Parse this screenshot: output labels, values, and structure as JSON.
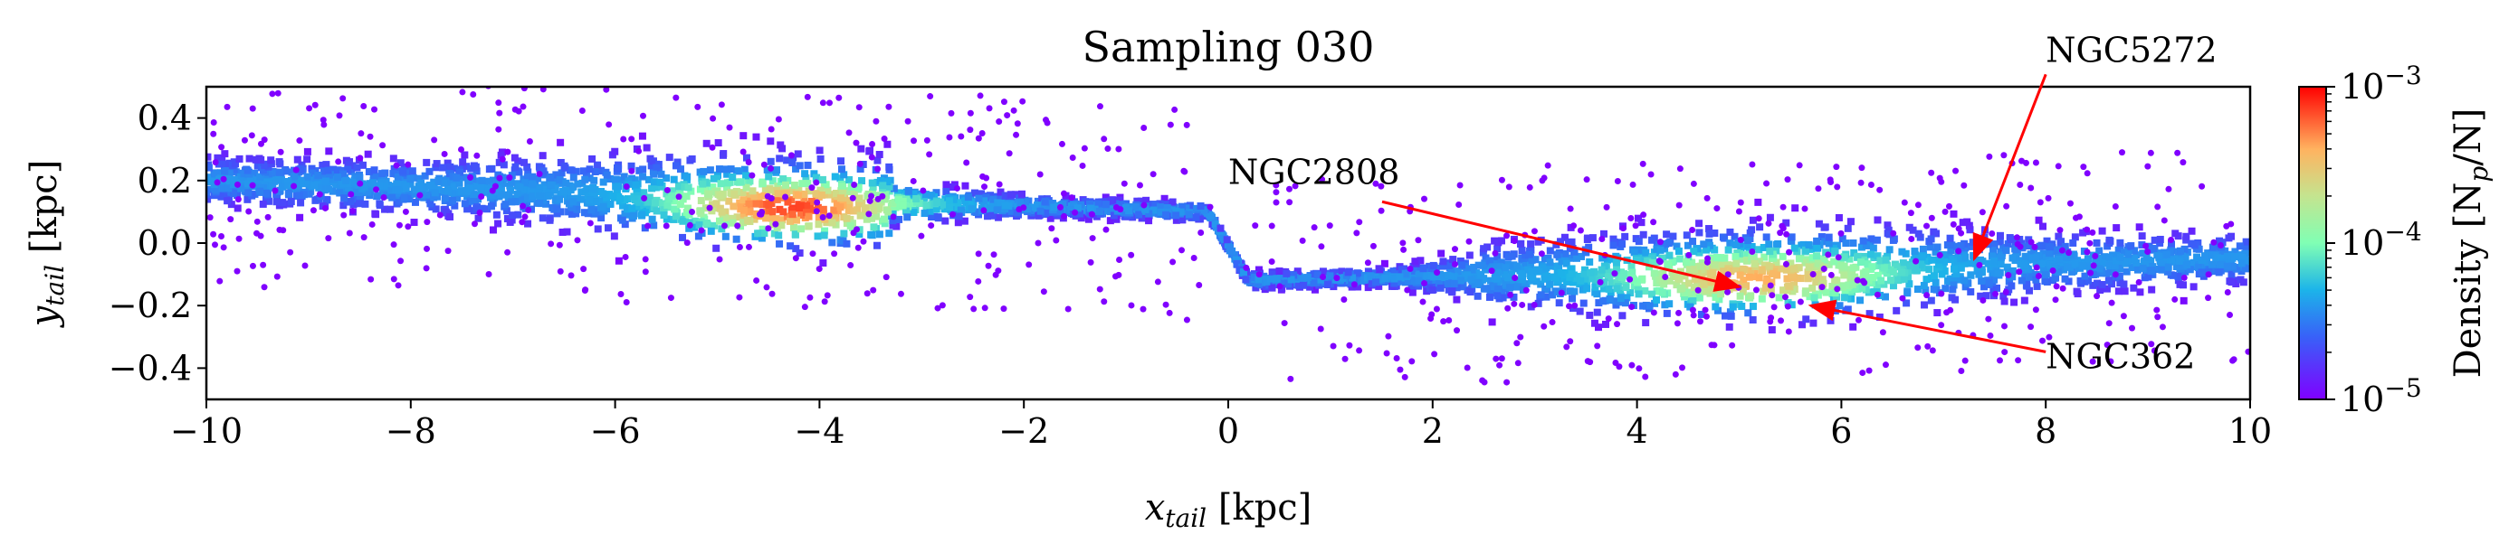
{
  "chart_data": {
    "type": "heatmap",
    "title": "Sampling 030",
    "xlabel": {
      "main": "x",
      "sub": "tail",
      "unit": "[kpc]"
    },
    "ylabel": {
      "main": "y",
      "sub": "tail",
      "unit": "[kpc]"
    },
    "xlim": [
      -10,
      10
    ],
    "ylim": [
      -0.5,
      0.5
    ],
    "xticks": [
      -10,
      -8,
      -6,
      -4,
      -2,
      0,
      2,
      4,
      6,
      8,
      10
    ],
    "xtick_labels": [
      "−10",
      "−8",
      "−6",
      "−4",
      "−2",
      "0",
      "2",
      "4",
      "6",
      "8",
      "10"
    ],
    "yticks": [
      -0.4,
      -0.2,
      0.0,
      0.2,
      0.4
    ],
    "ytick_labels": [
      "−0.4",
      "−0.2",
      "0.0",
      "0.2",
      "0.4"
    ],
    "grid": false,
    "colorbar": {
      "label": {
        "prefix": "Density [N",
        "sub": "p",
        "suffix": "/N]"
      },
      "scale": "log",
      "range": [
        1e-05,
        0.001
      ],
      "ticks": [
        {
          "value": 1e-05,
          "base": "10",
          "exp": "−5"
        },
        {
          "value": 0.0001,
          "base": "10",
          "exp": "−4"
        },
        {
          "value": 0.001,
          "base": "10",
          "exp": "−3"
        }
      ],
      "colormap": "rainbow"
    },
    "density_features": [
      {
        "x_range": [
          -10,
          -0.2
        ],
        "y_center_start": 0.2,
        "y_center_end": 0.1,
        "peak": {
          "x": -4.3,
          "y": 0.09,
          "density": 0.001
        }
      },
      {
        "x_range": [
          -0.2,
          0.2
        ],
        "kink": {
          "x": 0.0,
          "y_from": 0.1,
          "y_to": -0.1
        }
      },
      {
        "x_range": [
          0.2,
          10
        ],
        "y_center_start": -0.12,
        "y_center_end": -0.05,
        "peak": {
          "x": 5.2,
          "y": -0.14,
          "density": 0.0005
        }
      }
    ],
    "annotations": [
      {
        "text": "NGC2808",
        "text_x": 0,
        "text_y": 0.19,
        "arrow_to": [
          5.0,
          -0.14
        ],
        "color": "#ff0000"
      },
      {
        "text": "NGC5272",
        "text_x": 8.0,
        "text_y": 0.58,
        "arrow_to": [
          7.3,
          -0.05
        ],
        "color": "#ff0000"
      },
      {
        "text": "NGC362",
        "text_x": 8.0,
        "text_y": -0.4,
        "arrow_to": [
          5.7,
          -0.2
        ],
        "color": "#ff0000"
      }
    ]
  }
}
